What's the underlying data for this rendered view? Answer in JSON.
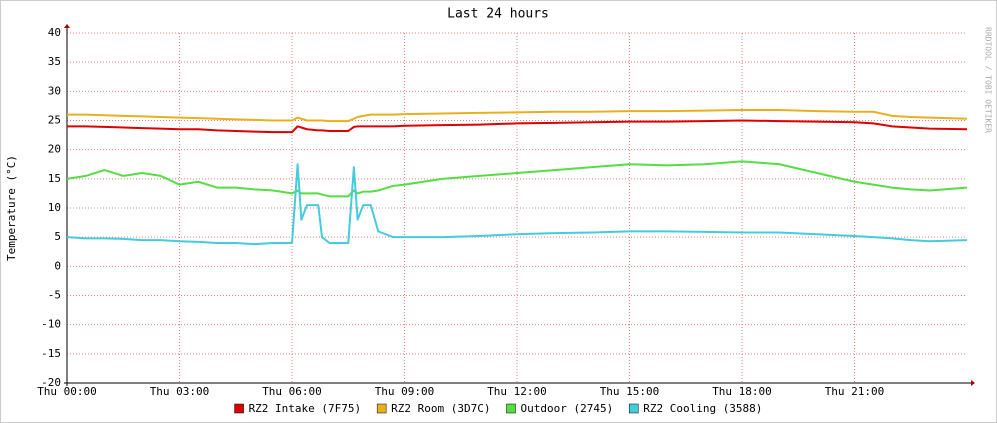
{
  "chart_data": {
    "type": "line",
    "title": "Last 24 hours",
    "y_label": "Temperature (°C)",
    "watermark": "RRDTOOL / TOBI OETIKER",
    "xlim": [
      0,
      24
    ],
    "xticks": [
      {
        "value": 0,
        "label": "Thu 00:00"
      },
      {
        "value": 3,
        "label": "Thu 03:00"
      },
      {
        "value": 6,
        "label": "Thu 06:00"
      },
      {
        "value": 9,
        "label": "Thu 09:00"
      },
      {
        "value": 12,
        "label": "Thu 12:00"
      },
      {
        "value": 15,
        "label": "Thu 15:00"
      },
      {
        "value": 18,
        "label": "Thu 18:00"
      },
      {
        "value": 21,
        "label": "Thu 21:00"
      }
    ],
    "ylim": [
      -20,
      40
    ],
    "yticks": [
      -20,
      -15,
      -10,
      -5,
      0,
      5,
      10,
      15,
      20,
      25,
      30,
      35,
      40
    ],
    "grid": true,
    "legend": "bottom",
    "x": [
      0,
      0.5,
      1,
      1.5,
      2,
      2.5,
      3,
      3.5,
      4,
      4.5,
      5,
      5.5,
      6,
      6.15,
      6.25,
      6.4,
      6.7,
      6.8,
      7,
      7.5,
      7.65,
      7.75,
      7.9,
      8.1,
      8.3,
      8.7,
      9,
      10,
      11,
      12,
      13,
      14,
      15,
      16,
      17,
      18,
      19,
      20,
      21,
      21.5,
      22,
      22.5,
      23,
      24
    ],
    "series": [
      {
        "name": "RZ2 Intake (7F75)",
        "color": "#dd0000",
        "values": [
          24,
          24,
          23.9,
          23.8,
          23.7,
          23.6,
          23.5,
          23.5,
          23.3,
          23.2,
          23.1,
          23,
          23,
          24,
          23.8,
          23.5,
          23.3,
          23.3,
          23.2,
          23.2,
          23.9,
          24,
          24,
          24,
          24,
          24,
          24.1,
          24.2,
          24.3,
          24.5,
          24.6,
          24.7,
          24.8,
          24.8,
          24.9,
          25,
          24.9,
          24.8,
          24.7,
          24.5,
          24,
          23.8,
          23.6,
          23.5
        ]
      },
      {
        "name": "RZ2 Room (3D7C)",
        "color": "#e8b020",
        "values": [
          26,
          26,
          25.9,
          25.8,
          25.7,
          25.6,
          25.5,
          25.4,
          25.3,
          25.2,
          25.1,
          25,
          25,
          25.5,
          25.3,
          25,
          25,
          25,
          24.9,
          24.9,
          25.3,
          25.6,
          25.8,
          26,
          26,
          26,
          26.1,
          26.2,
          26.3,
          26.4,
          26.5,
          26.5,
          26.6,
          26.6,
          26.7,
          26.8,
          26.8,
          26.6,
          26.5,
          26.5,
          25.8,
          25.6,
          25.5,
          25.3
        ]
      },
      {
        "name": "Outdoor (2745)",
        "color": "#55dd44",
        "values": [
          15,
          15.5,
          16.5,
          15.5,
          16,
          15.5,
          14,
          14.5,
          13.5,
          13.5,
          13.2,
          13,
          12.5,
          13,
          12.5,
          12.5,
          12.5,
          12.3,
          12,
          12,
          13,
          12.5,
          12.8,
          12.8,
          13,
          13.8,
          14,
          15,
          15.5,
          16,
          16.5,
          17,
          17.5,
          17.3,
          17.5,
          18,
          17.5,
          16,
          14.5,
          14,
          13.5,
          13.2,
          13,
          13.5
        ]
      },
      {
        "name": "RZ2 Cooling (3588)",
        "color": "#44ccdd",
        "values": [
          5,
          4.8,
          4.8,
          4.7,
          4.5,
          4.5,
          4.3,
          4.2,
          4,
          4,
          3.8,
          4,
          4,
          17.5,
          8,
          10.5,
          10.5,
          5,
          4,
          4,
          17,
          8,
          10.5,
          10.5,
          6,
          5,
          5,
          5,
          5.2,
          5.5,
          5.7,
          5.8,
          6,
          6,
          5.9,
          5.8,
          5.8,
          5.5,
          5.2,
          5,
          4.8,
          4.5,
          4.3,
          4.5
        ]
      }
    ]
  }
}
